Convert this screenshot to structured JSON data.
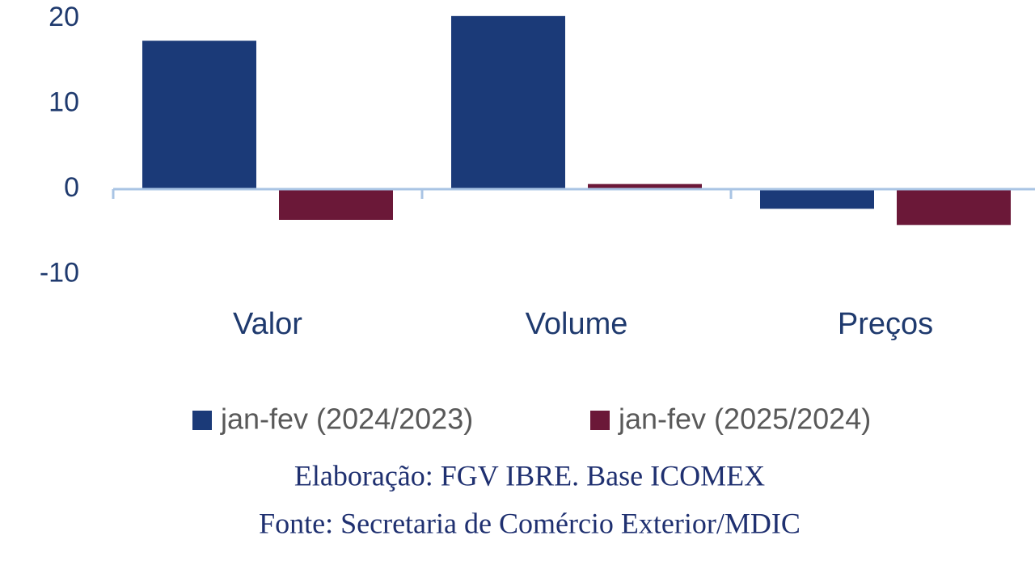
{
  "chart_data": {
    "type": "bar",
    "categories": [
      "Valor",
      "Volume",
      "Preços"
    ],
    "series": [
      {
        "name": "jan-fev (2024/2023)",
        "color": "#1b3a78",
        "values": [
          17.4,
          20.3,
          -2.3
        ]
      },
      {
        "name": "jan-fev (2025/2024)",
        "color": "#6b1838",
        "values": [
          -3.6,
          0.6,
          -4.2
        ]
      }
    ],
    "ylim": [
      -10,
      22
    ],
    "yticks": [
      -10,
      0,
      10,
      20
    ],
    "grid": false,
    "notes": [
      "Elaboração: FGV IBRE. Base ICOMEX",
      "Fonte: Secretaria de Comércio Exterior/MDIC"
    ]
  }
}
